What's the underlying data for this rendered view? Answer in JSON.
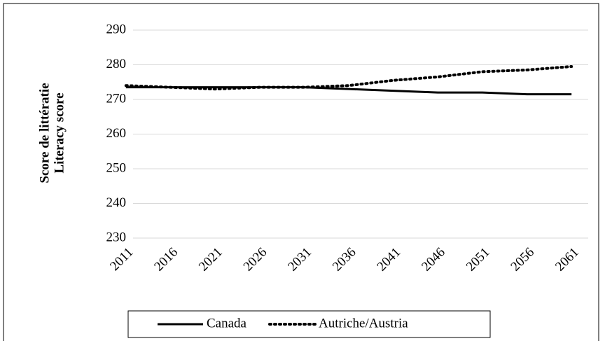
{
  "chart_data": {
    "type": "line",
    "y_label": [
      "Score de littératie",
      "Literacy score"
    ],
    "categories": [
      "2011",
      "2016",
      "2021",
      "2026",
      "2031",
      "2036",
      "2041",
      "2046",
      "2051",
      "2056",
      "2061"
    ],
    "series": [
      {
        "name": "Canada",
        "color": "#000000",
        "dash": "solid",
        "values": [
          273.5,
          273.5,
          273.5,
          273.5,
          273.5,
          273,
          272.5,
          272,
          272,
          271.5,
          271.5
        ]
      },
      {
        "name": "Autriche/Austria",
        "color": "#000000",
        "dash": "dotted",
        "values": [
          274,
          273.5,
          273,
          273.5,
          273.5,
          274,
          275.5,
          276.5,
          278,
          278.5,
          279.5
        ]
      }
    ],
    "ylim": [
      230,
      290
    ],
    "yticks": [
      230,
      240,
      250,
      260,
      270,
      280,
      290
    ],
    "grid": true,
    "legend": "bottom"
  }
}
